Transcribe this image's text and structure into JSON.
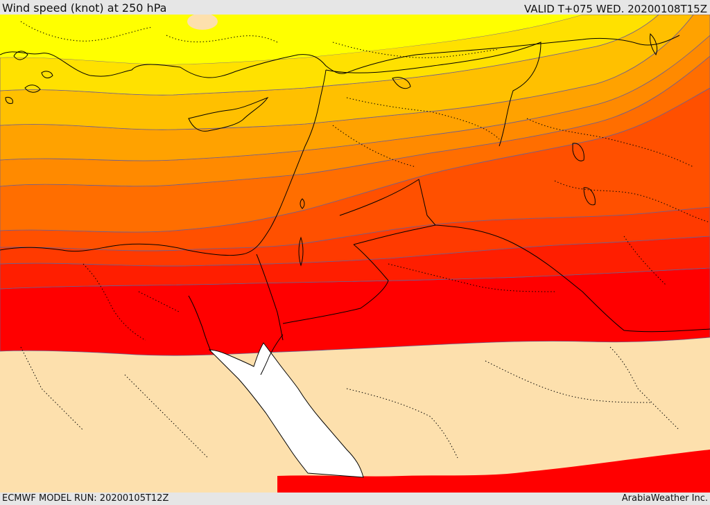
{
  "header": {
    "title": "Wind speed (knot) at 250 hPa",
    "valid_time": "VALID T+075 WED. 20200108T15Z"
  },
  "footer": {
    "model_run": "ECMWF MODEL RUN: 20200105T12Z",
    "credit": "ArabiaWeather Inc."
  },
  "map": {
    "region": "Eastern Mediterranean / Levant / Northern Arabia",
    "colors": {
      "band_1": "#ffff00",
      "band_2": "#ffe100",
      "band_3": "#ffc000",
      "band_4": "#ffa200",
      "band_5": "#ff8a00",
      "band_6": "#ff6e00",
      "band_7": "#ff5000",
      "band_8": "#ff3a00",
      "band_9": "#ff1e00",
      "band_10": "#ff0000",
      "below_threshold": "#fde0ad",
      "sea_white": "#ffffff",
      "contour": "#6f5f8f",
      "coastline": "#000000"
    }
  }
}
